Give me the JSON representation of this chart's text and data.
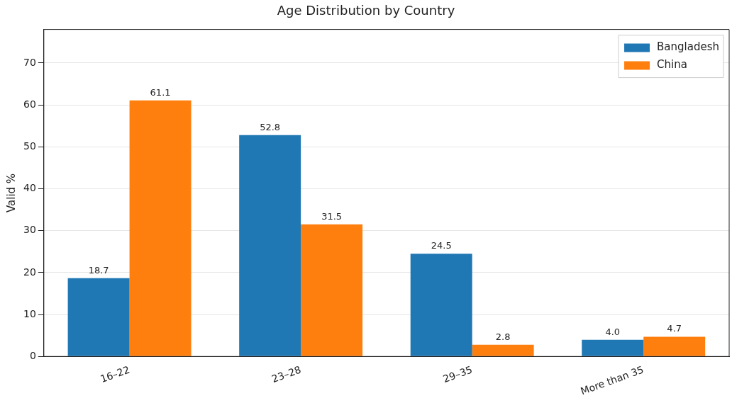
{
  "chart_data": {
    "type": "bar",
    "title": "Age Distribution by Country",
    "ylabel": "Valid %",
    "categories": [
      "16–22",
      "23–28",
      "29–35",
      "More than 35"
    ],
    "series": [
      {
        "name": "Bangladesh",
        "color": "#1f77b4",
        "values": [
          18.7,
          52.8,
          24.5,
          4.0
        ],
        "value_labels": [
          "18.7",
          "52.8",
          "24.5",
          "4.0"
        ]
      },
      {
        "name": "China",
        "color": "#ff7f0e",
        "values": [
          61.1,
          31.5,
          2.8,
          4.7
        ],
        "value_labels": [
          "61.1",
          "31.5",
          "2.8",
          "4.7"
        ]
      }
    ],
    "ylim": [
      0,
      78
    ],
    "yticks": [
      0,
      10,
      20,
      30,
      40,
      50,
      60,
      70
    ],
    "grid": "y",
    "legend": "top right"
  }
}
